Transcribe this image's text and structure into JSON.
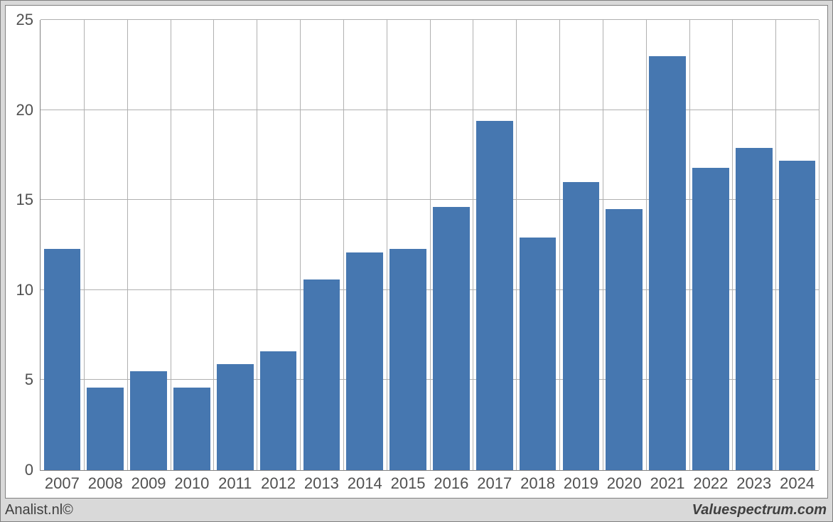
{
  "chart": {
    "type": "bar",
    "background_color": "#d9d9d9",
    "plot_background_color": "#ffffff",
    "border_color": "#808080",
    "grid_color": "#b0b0b0",
    "bar_color": "#4677b0",
    "tick_font_size": 22,
    "tick_color": "#505050",
    "ylim": [
      0,
      25
    ],
    "ytick_step": 5,
    "yticks": [
      0,
      5,
      10,
      15,
      20,
      25
    ],
    "bar_width_ratio": 0.85,
    "categories": [
      "2007",
      "2008",
      "2009",
      "2010",
      "2011",
      "2012",
      "2013",
      "2014",
      "2015",
      "2016",
      "2017",
      "2018",
      "2019",
      "2020",
      "2021",
      "2022",
      "2023",
      "2024"
    ],
    "values": [
      12.3,
      4.6,
      5.5,
      4.6,
      5.9,
      6.6,
      10.6,
      12.1,
      12.3,
      14.6,
      19.4,
      12.9,
      16.0,
      14.5,
      23.0,
      16.8,
      17.9,
      17.2
    ]
  },
  "footer": {
    "left": "Analist.nl©",
    "right": "Valuespectrum.com"
  }
}
